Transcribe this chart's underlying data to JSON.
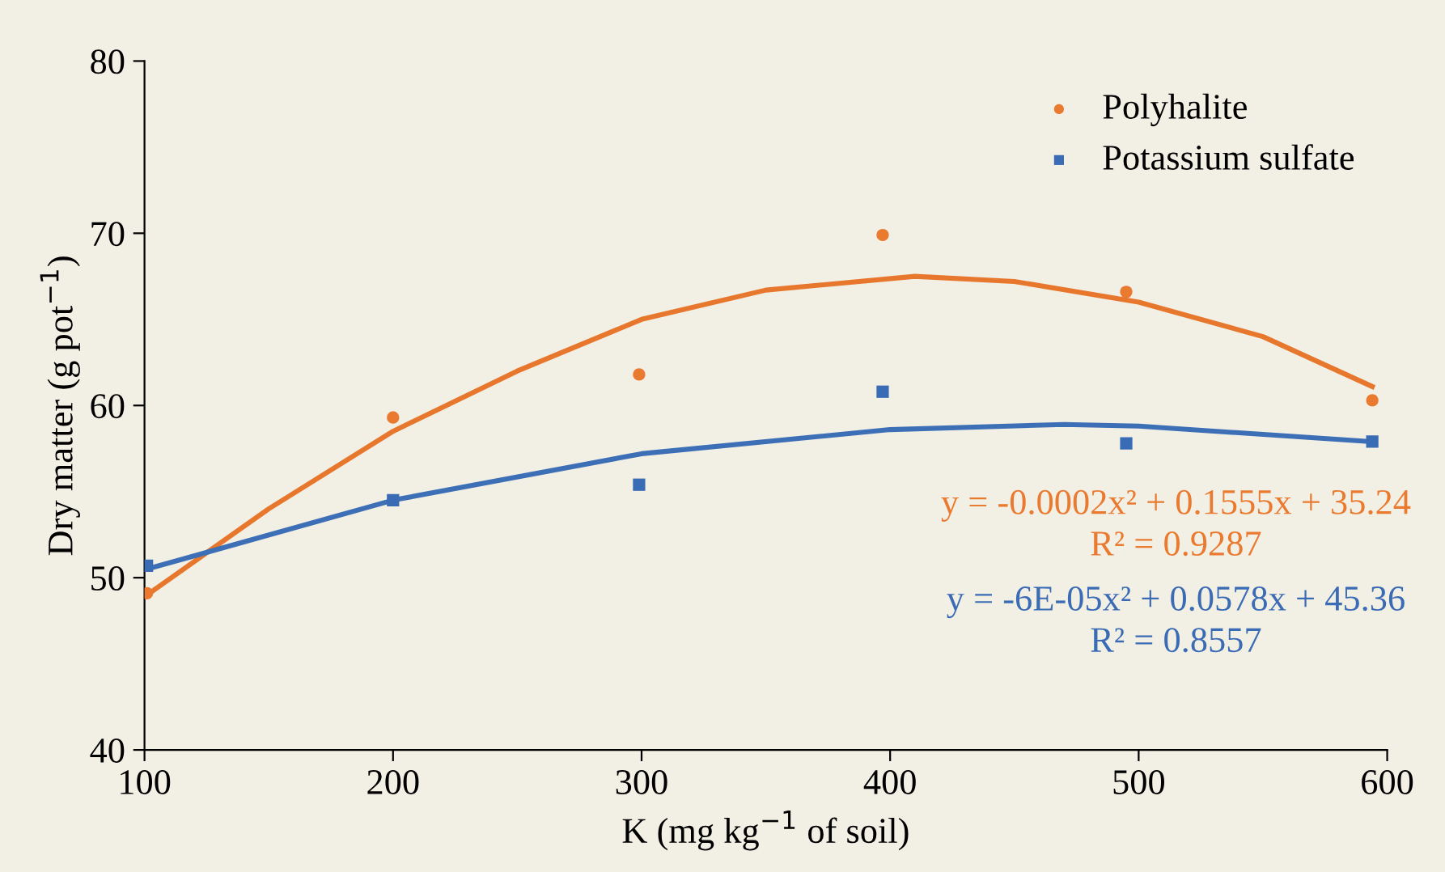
{
  "chart_data": {
    "type": "scatter",
    "xlabel": "K (mg kg$^{−1}$ of soil)",
    "ylabel": "Dry matter (g pot$^{−1}$)",
    "xlim": [
      100,
      600
    ],
    "xticks": [
      100,
      200,
      300,
      400,
      500,
      600
    ],
    "ylim": [
      40,
      80
    ],
    "yticks": [
      40,
      50,
      60,
      70,
      80
    ],
    "grid": false,
    "legend": "top right",
    "series": [
      {
        "name": "Polyhalite",
        "marker": "circle",
        "color": "#e97a2f",
        "x": [
          101,
          200,
          299,
          397,
          495,
          594
        ],
        "values": [
          49.1,
          59.3,
          61.8,
          69.9,
          66.6,
          60.3
        ]
      },
      {
        "name": "Potassium sulfate",
        "marker": "square",
        "color": "#3a6bb5",
        "x": [
          101,
          200,
          299,
          397,
          495,
          594
        ],
        "values": [
          50.7,
          54.5,
          55.4,
          60.8,
          57.8,
          57.9
        ]
      },
      {
        "type": "line",
        "color": "#e8772e",
        "x": [
          101,
          150,
          200,
          250,
          300,
          350,
          410,
          450,
          500,
          550,
          594
        ],
        "values": [
          49.0,
          54.0,
          58.5,
          62.0,
          65.0,
          66.7,
          67.5,
          67.2,
          66.0,
          64.0,
          61.1
        ]
      },
      {
        "type": "line",
        "color": "#3c6fb6",
        "x": [
          101,
          200,
          300,
          400,
          470,
          500,
          594
        ],
        "values": [
          50.5,
          54.5,
          57.2,
          58.6,
          58.9,
          58.8,
          57.9
        ]
      }
    ],
    "annotations": [
      "y = -0.0002x² + 0.1555x + 35.24",
      "R² = 0.9287",
      "y = -6E-05x² + 0.0578x + 45.36",
      "R² = 0.8557"
    ]
  }
}
